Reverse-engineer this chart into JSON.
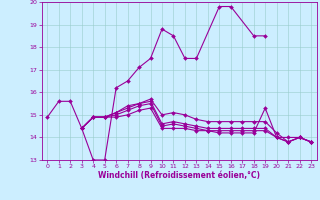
{
  "xlabel": "Windchill (Refroidissement éolien,°C)",
  "background_color": "#cceeff",
  "line_color": "#990099",
  "grid_color": "#99cccc",
  "xlim": [
    -0.5,
    23.5
  ],
  "ylim": [
    13,
    20
  ],
  "xticks": [
    0,
    1,
    2,
    3,
    4,
    5,
    6,
    7,
    8,
    9,
    10,
    11,
    12,
    13,
    14,
    15,
    16,
    17,
    18,
    19,
    20,
    21,
    22,
    23
  ],
  "yticks": [
    13,
    14,
    15,
    16,
    17,
    18,
    19,
    20
  ],
  "lines": [
    {
      "x": [
        0,
        1,
        2,
        3,
        4,
        5,
        6,
        7,
        8,
        9,
        10,
        11,
        12,
        13,
        15,
        16,
        18,
        19
      ],
      "y": [
        14.9,
        15.6,
        15.6,
        14.4,
        13.0,
        13.0,
        16.2,
        16.5,
        17.1,
        17.5,
        18.8,
        18.5,
        17.5,
        17.5,
        19.8,
        19.8,
        18.5,
        18.5
      ]
    },
    {
      "x": [
        3,
        4,
        5,
        6,
        7,
        8,
        9,
        10,
        11,
        12,
        13,
        14,
        15,
        16,
        17,
        18,
        19,
        20,
        21,
        22,
        23
      ],
      "y": [
        14.4,
        14.9,
        14.9,
        14.9,
        15.0,
        15.2,
        15.3,
        14.4,
        14.4,
        14.4,
        14.3,
        14.3,
        14.2,
        14.2,
        14.2,
        14.2,
        15.3,
        14.0,
        14.0,
        14.0,
        13.8
      ]
    },
    {
      "x": [
        3,
        4,
        5,
        6,
        7,
        8,
        9,
        10,
        11,
        12,
        13,
        14,
        15,
        16,
        17,
        18,
        19,
        20,
        21,
        22,
        23
      ],
      "y": [
        14.4,
        14.9,
        14.9,
        15.0,
        15.2,
        15.4,
        15.5,
        14.5,
        14.6,
        14.5,
        14.4,
        14.3,
        14.3,
        14.3,
        14.3,
        14.3,
        14.3,
        14.0,
        13.8,
        14.0,
        13.8
      ]
    },
    {
      "x": [
        3,
        4,
        5,
        6,
        7,
        8,
        9,
        10,
        11,
        12,
        13,
        14,
        15,
        16,
        17,
        18,
        19,
        20,
        21,
        22,
        23
      ],
      "y": [
        14.4,
        14.9,
        14.9,
        15.1,
        15.3,
        15.5,
        15.6,
        14.6,
        14.7,
        14.6,
        14.5,
        14.4,
        14.4,
        14.4,
        14.4,
        14.4,
        14.4,
        14.0,
        13.8,
        14.0,
        13.8
      ]
    },
    {
      "x": [
        3,
        4,
        5,
        6,
        7,
        8,
        9,
        10,
        11,
        12,
        13,
        14,
        15,
        16,
        17,
        18,
        19,
        20,
        21,
        22,
        23
      ],
      "y": [
        14.4,
        14.9,
        14.9,
        15.1,
        15.4,
        15.5,
        15.7,
        15.0,
        15.1,
        15.0,
        14.8,
        14.7,
        14.7,
        14.7,
        14.7,
        14.7,
        14.7,
        14.2,
        13.8,
        14.0,
        13.8
      ]
    }
  ],
  "marker": "D",
  "markersize": 2,
  "linewidth": 0.8,
  "tick_fontsize": 4.5,
  "label_fontsize": 5.5,
  "tick_color": "#990099",
  "label_color": "#990099",
  "axis_color": "#990099"
}
